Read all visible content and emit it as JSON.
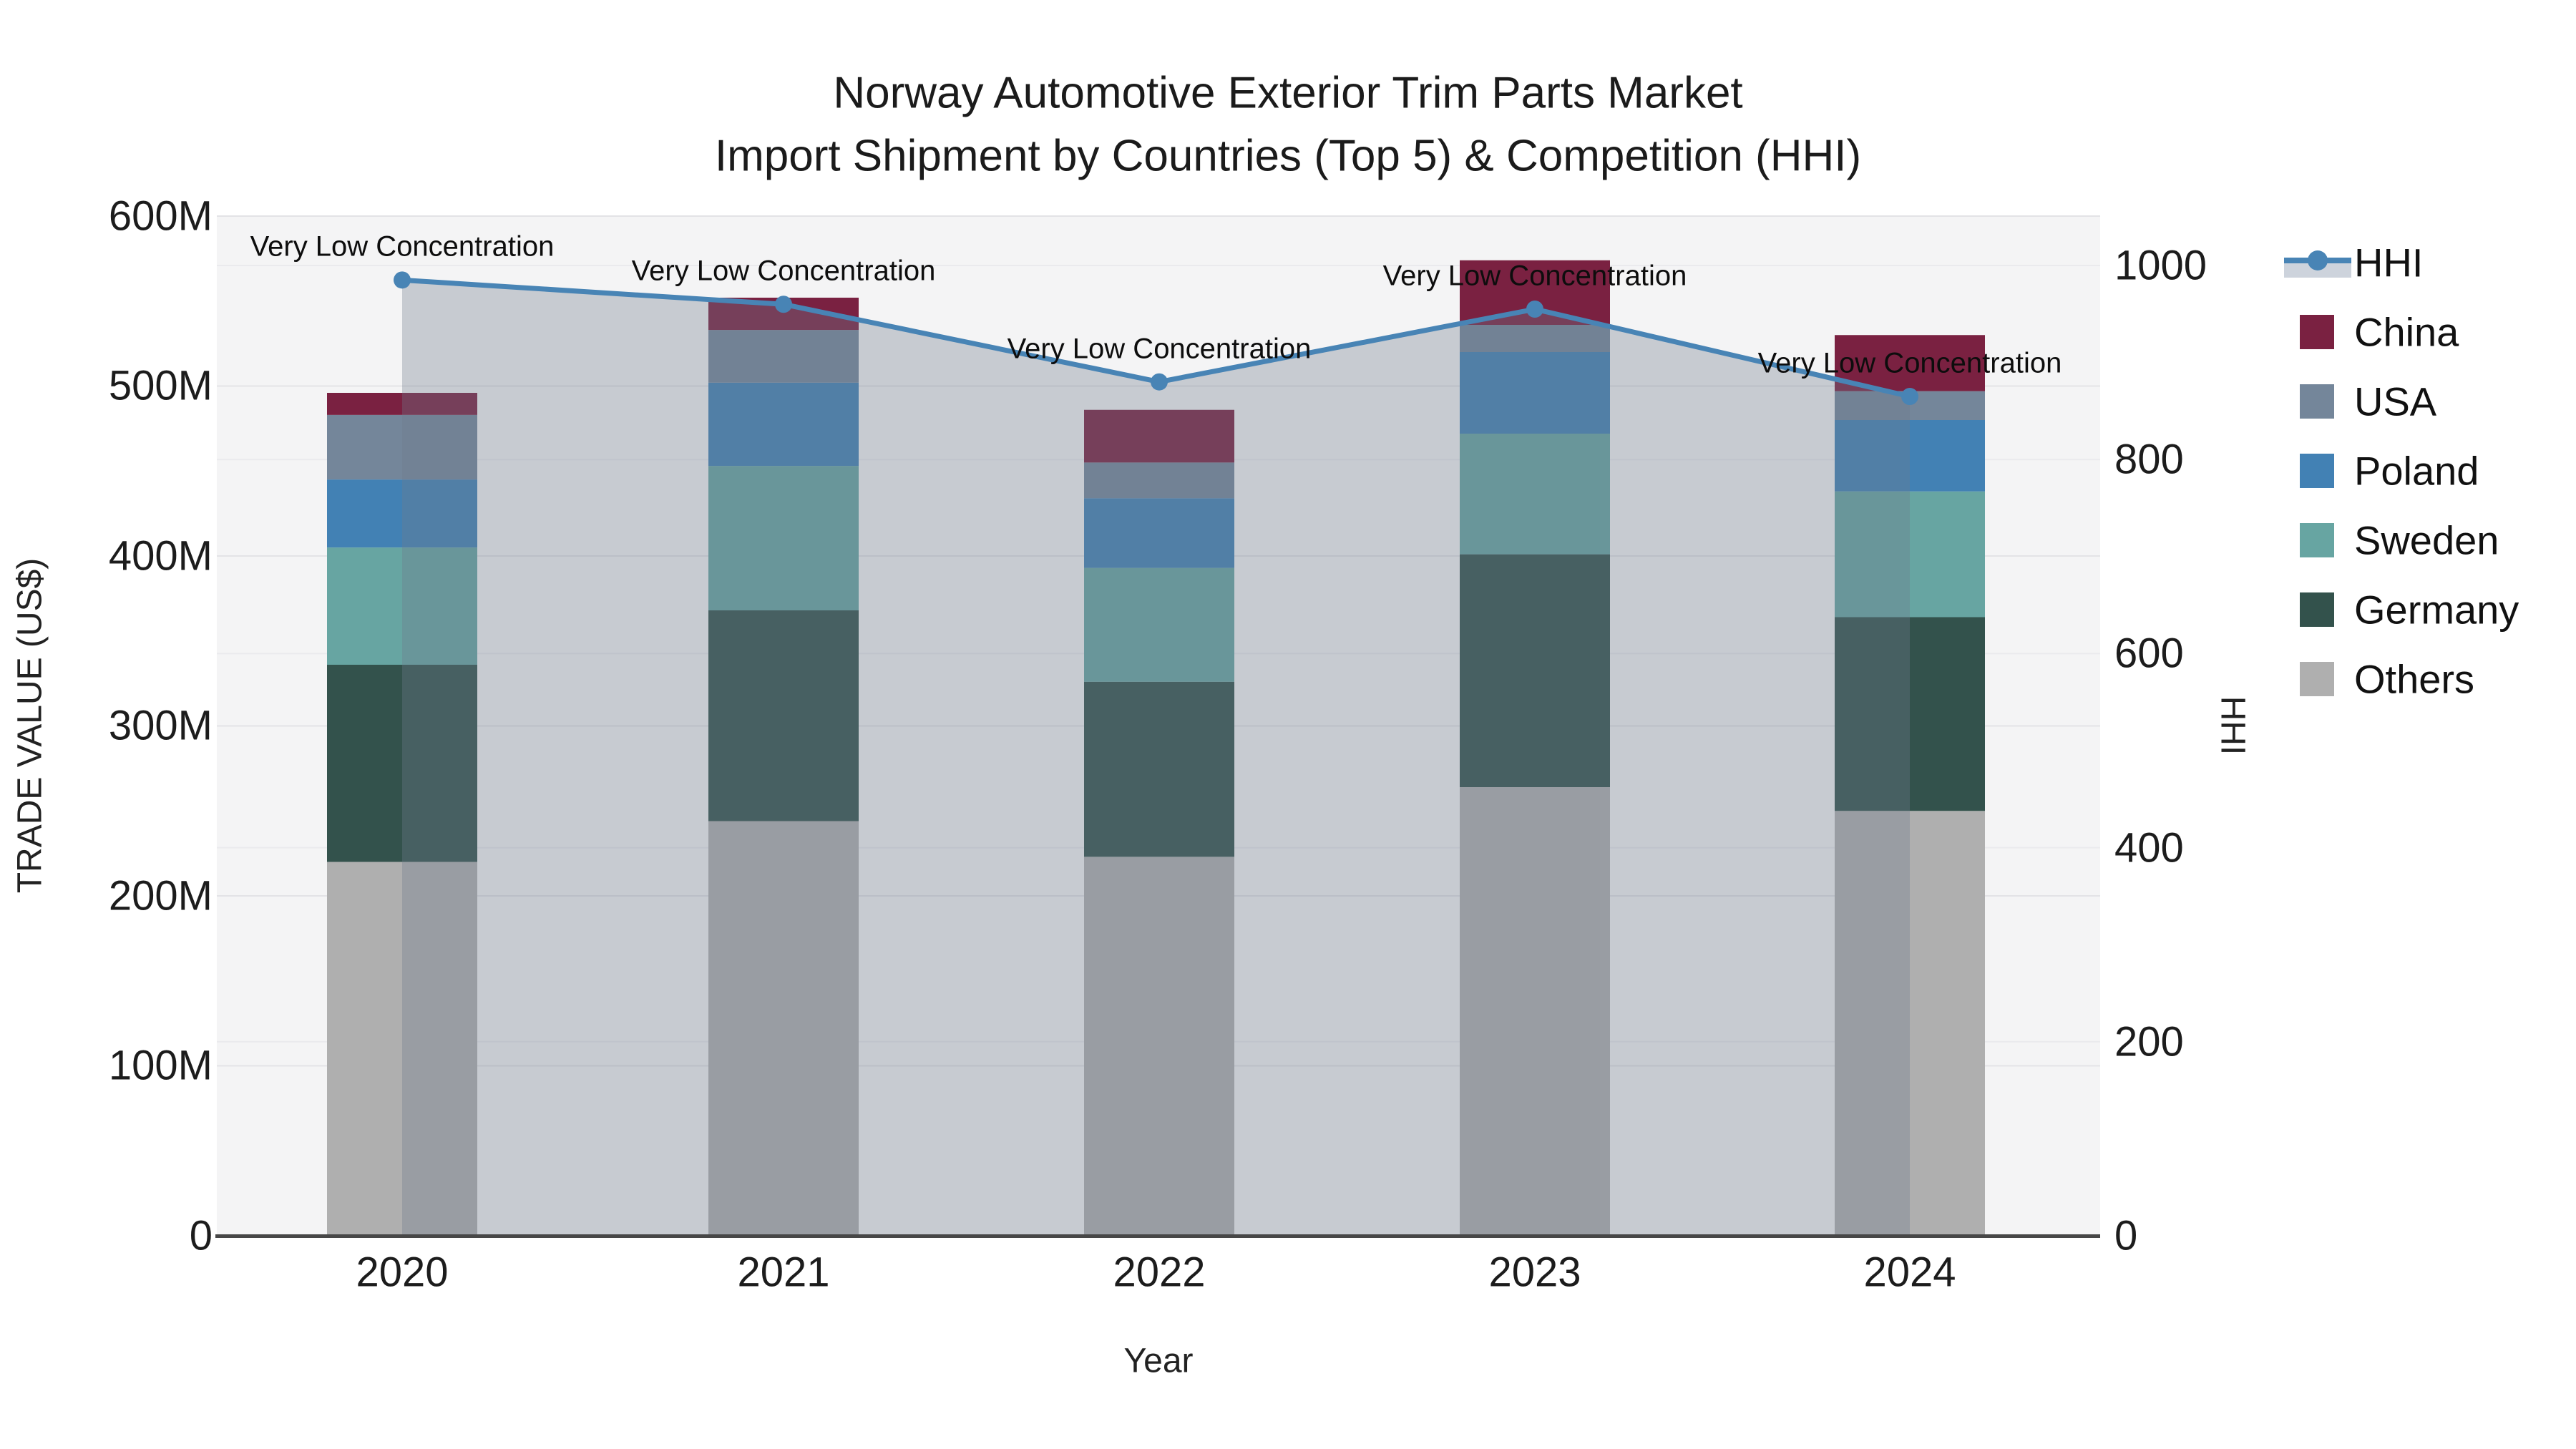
{
  "title": {
    "line1": "Norway Automotive Exterior Trim Parts Market",
    "line2": "Import Shipment by Countries (Top 5) & Competition (HHI)"
  },
  "axes": {
    "left": {
      "title": "TRADE VALUE (US$)",
      "ticks": [
        "0",
        "100M",
        "200M",
        "300M",
        "400M",
        "500M",
        "600M"
      ]
    },
    "right": {
      "title": "HHI",
      "ticks": [
        "0",
        "200",
        "400",
        "600",
        "800",
        "1000"
      ]
    },
    "x": {
      "title": "Year",
      "categories": [
        "2020",
        "2021",
        "2022",
        "2023",
        "2024"
      ]
    }
  },
  "chart_data": {
    "type": "bar",
    "subtype": "stacked-bars-with-line",
    "categories": [
      2020,
      2021,
      2022,
      2023,
      2024
    ],
    "value_units": "million US$",
    "series": [
      {
        "name": "Others",
        "color": "#afafaf",
        "values": [
          220,
          244,
          223,
          264,
          250
        ]
      },
      {
        "name": "Germany",
        "color": "#33524c",
        "values": [
          116,
          124,
          103,
          137,
          114
        ]
      },
      {
        "name": "Sweden",
        "color": "#67a5a2",
        "values": [
          69,
          85,
          67,
          71,
          74
        ]
      },
      {
        "name": "Poland",
        "color": "#4281b4",
        "values": [
          40,
          49,
          41,
          48,
          42
        ]
      },
      {
        "name": "USA",
        "color": "#74869a",
        "values": [
          38,
          31,
          21,
          16,
          17
        ]
      },
      {
        "name": "China",
        "color": "#7a2141",
        "values": [
          13,
          19,
          31,
          38,
          33
        ]
      }
    ],
    "line": {
      "name": "HHI",
      "axis": "right",
      "color": "#4884b5",
      "area_fill": "rgba(110,122,141,0.34)",
      "values": [
        985,
        960,
        880,
        955,
        865
      ]
    },
    "annotations": [
      "Very Low Concentration",
      "Very Low Concentration",
      "Very Low Concentration",
      "Very Low Concentration",
      "Very Low Concentration"
    ],
    "ylim_left_M": [
      0,
      600
    ],
    "ylim_right": [
      0,
      1050
    ],
    "grid": true,
    "legend_position": "right"
  },
  "legend": {
    "items": [
      {
        "label": "HHI",
        "color": "#4884b5",
        "type": "line"
      },
      {
        "label": "China",
        "color": "#7a2141",
        "type": "swatch"
      },
      {
        "label": "USA",
        "color": "#74869a",
        "type": "swatch"
      },
      {
        "label": "Poland",
        "color": "#4281b4",
        "type": "swatch"
      },
      {
        "label": "Sweden",
        "color": "#67a5a2",
        "type": "swatch"
      },
      {
        "label": "Germany",
        "color": "#33524c",
        "type": "swatch"
      },
      {
        "label": "Others",
        "color": "#afafaf",
        "type": "swatch"
      }
    ]
  },
  "colors": {
    "plot_bg": "#f4f4f5",
    "grid_left": "#e3e3e6",
    "grid_right": "#eaeaed",
    "axis_line": "#474747"
  }
}
